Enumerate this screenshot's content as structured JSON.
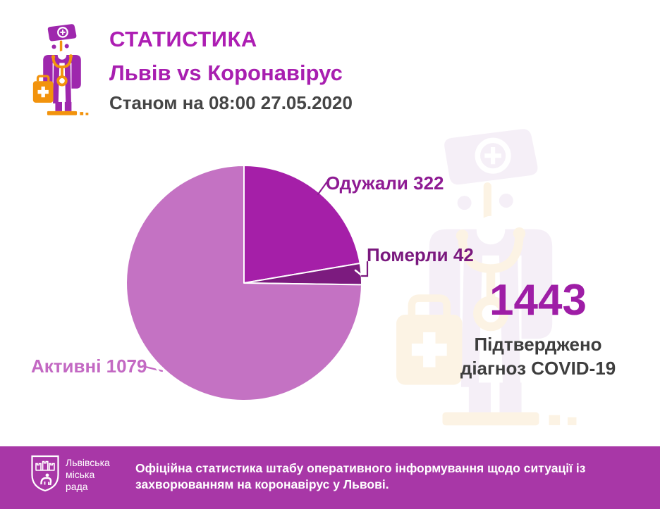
{
  "header": {
    "title": "СТАТИСТИКА",
    "subtitle": "Львів vs Коронавірус",
    "date_line": "Станом на 08:00 27.05.2020"
  },
  "chart_data": {
    "type": "pie",
    "start_angle_deg": 0,
    "direction": "clockwise",
    "segments": [
      {
        "label": "Одужали",
        "value": 322,
        "display": "Одужали 322",
        "color": "#a51fa8",
        "label_color": "#8e1b93"
      },
      {
        "label": "Померли",
        "value": 42,
        "display": "Померли 42",
        "color": "#7c1b7f",
        "label_color": "#7a187e"
      },
      {
        "label": "Активні",
        "value": 1079,
        "display": "Активні 1079",
        "color": "#c472c3",
        "label_color": "#c369c3"
      }
    ],
    "total": 1443,
    "total_caption": "Підтверджено діагноз COVID-19"
  },
  "stat": {
    "number": "1443",
    "caption_lines": [
      "Підтверджено",
      "діагноз COVID-19"
    ]
  },
  "footer": {
    "org_name_lines": [
      "Львівська",
      "міська",
      "рада"
    ],
    "text": "Офіційна статистика штабу оперативного інформування щодо ситуації із захворюванням на коронавірус у Львові.",
    "bg_color": "#a837a7"
  },
  "icons": {
    "doctor_mascot": "doctor-mascot-icon",
    "doctor_watermark": "doctor-watermark-icon",
    "coat_of_arms": "lviv-coat-of-arms-icon"
  },
  "colors": {
    "title_magenta": "#ad1eb3",
    "big_number_magenta": "#9e1da6",
    "dark_text": "#3d3d3d",
    "footer_purple": "#a837a7",
    "icon_purple": "#9e27ad",
    "icon_orange": "#f2930d"
  }
}
